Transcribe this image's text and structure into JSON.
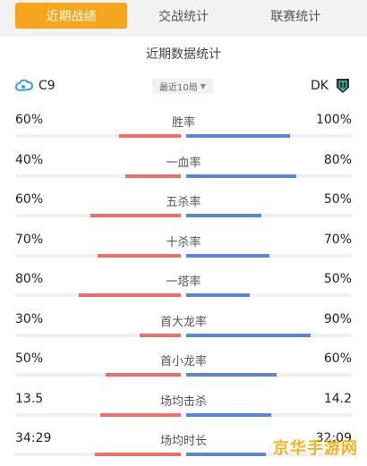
{
  "tabs": [
    {
      "label": "近期战绩",
      "active": true
    },
    {
      "label": "交战统计",
      "active": false
    },
    {
      "label": "联赛统计",
      "active": false
    }
  ],
  "section_title": "近期数据统计",
  "team_left": {
    "name": "C9",
    "logo": "c9-cloud-logo"
  },
  "team_right": {
    "name": "DK",
    "logo": "dk-shield-logo"
  },
  "filter": {
    "label": "最近10局"
  },
  "colors": {
    "active_tab": "#f7a51d",
    "left_bar": "#ee6e6e",
    "right_bar": "#5b86d8"
  },
  "stats": [
    {
      "label": "胜率",
      "left": "60%",
      "right": "100%",
      "left_ratio": 0.375,
      "right_ratio": 0.625
    },
    {
      "label": "一血率",
      "left": "40%",
      "right": "80%",
      "left_ratio": 0.333,
      "right_ratio": 0.667
    },
    {
      "label": "五杀率",
      "left": "60%",
      "right": "50%",
      "left_ratio": 0.545,
      "right_ratio": 0.455
    },
    {
      "label": "十杀率",
      "left": "70%",
      "right": "70%",
      "left_ratio": 0.5,
      "right_ratio": 0.5
    },
    {
      "label": "一塔率",
      "left": "80%",
      "right": "50%",
      "left_ratio": 0.615,
      "right_ratio": 0.385
    },
    {
      "label": "首大龙率",
      "left": "30%",
      "right": "90%",
      "left_ratio": 0.25,
      "right_ratio": 0.75
    },
    {
      "label": "首小龙率",
      "left": "50%",
      "right": "60%",
      "left_ratio": 0.455,
      "right_ratio": 0.545
    },
    {
      "label": "场均击杀",
      "left": "13.5",
      "right": "14.2",
      "left_ratio": 0.487,
      "right_ratio": 0.513
    },
    {
      "label": "场均时长",
      "left": "34:29",
      "right": "32:09",
      "left_ratio": 0.518,
      "right_ratio": 0.482
    }
  ],
  "watermark": "京华手游网"
}
